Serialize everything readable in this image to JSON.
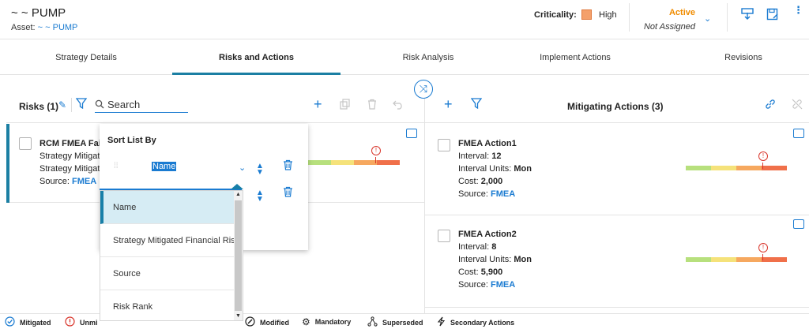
{
  "header": {
    "title": "~ ~ PUMP",
    "asset_label": "Asset:",
    "asset_link": "~ ~ PUMP",
    "criticality_label": "Criticality:",
    "criticality_value": "High",
    "criticality_color": "#f4a06b",
    "state": "Active",
    "assigned": "Not Assigned"
  },
  "tabs": [
    {
      "label": "Strategy Details"
    },
    {
      "label": "Risks and Actions",
      "active": true
    },
    {
      "label": "Risk Analysis"
    },
    {
      "label": "Implement Actions"
    },
    {
      "label": "Revisions"
    }
  ],
  "risks_panel": {
    "title": "Risks (1)",
    "search_placeholder": "Search",
    "card": {
      "title": "RCM FMEA Fai",
      "line1": "Strategy Mitigate",
      "line2": "Strategy Mitigate",
      "source_label": "Source:",
      "source_value": "FMEA"
    }
  },
  "sort_popup": {
    "title": "Sort List By",
    "selected": "Name",
    "options": [
      "Name",
      "Strategy Mitigated Financial Risk",
      "Source",
      "Risk Rank"
    ]
  },
  "actions_panel": {
    "title": "Mitigating Actions (3)",
    "cards": [
      {
        "title": "FMEA Action1",
        "interval_label": "Interval:",
        "interval": "12",
        "units_label": "Interval Units:",
        "units": "Mon",
        "cost_label": "Cost:",
        "cost": "2,000",
        "source_label": "Source:",
        "source": "FMEA"
      },
      {
        "title": "FMEA Action2",
        "interval_label": "Interval:",
        "interval": "8",
        "units_label": "Interval Units:",
        "units": "Mon",
        "cost_label": "Cost:",
        "cost": "5,900",
        "source_label": "Source:",
        "source": "FMEA"
      }
    ]
  },
  "legend": {
    "mitigated": "Mitigated",
    "unmitigated": "Unmi",
    "modified": "Modified",
    "mandatory": "Mandatory",
    "superseded": "Superseded",
    "secondary": "Secondary Actions"
  },
  "colors": {
    "accent": "#1a7bd1",
    "tab_underline": "#1b7fa3",
    "risk_red": "#d9362c"
  }
}
